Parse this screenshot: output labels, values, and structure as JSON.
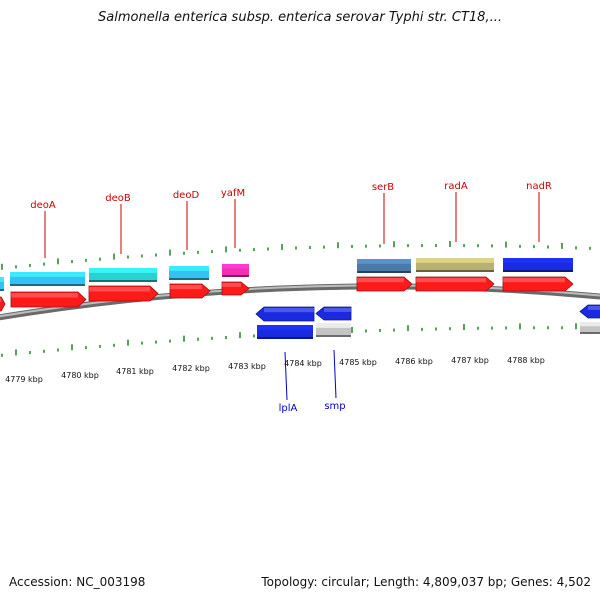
{
  "title": "Salmonella enterica subsp. enterica serovar Typhi str. CT18,...",
  "footer": {
    "accession": "Accession: NC_003198",
    "topology": "Topology: circular; Length: 4,809,037 bp; Genes: 4,502"
  },
  "scale": {
    "unit": "kbp",
    "labels": [
      "4779 kbp",
      "4780 kbp",
      "4781 kbp",
      "4782 kbp",
      "4783 kbp",
      "4784 kbp",
      "4785 kbp",
      "4786 kbp",
      "4787 kbp",
      "4788 kbp"
    ]
  },
  "genes": [
    {
      "name": "deoA",
      "strand": "+"
    },
    {
      "name": "deoB",
      "strand": "+"
    },
    {
      "name": "deoD",
      "strand": "+"
    },
    {
      "name": "yafM",
      "strand": "+"
    },
    {
      "name": "serB",
      "strand": "+"
    },
    {
      "name": "radA",
      "strand": "+"
    },
    {
      "name": "nadR",
      "strand": "+"
    },
    {
      "name": "lplA",
      "strand": "-"
    },
    {
      "name": "smp",
      "strand": "-"
    }
  ],
  "colors": {
    "cds": "#ff1a1a",
    "forward_gene_label": "#cc0000",
    "reverse_gene_label": "#0000cc",
    "backbone": "#8c8c8c",
    "tick": "#2e8b2e",
    "light_blue": "#33c3f2",
    "teal": "#2cd0d0",
    "magenta": "#f030b0",
    "steel_blue": "#4a7aa8",
    "khaki": "#b8b070",
    "blue": "#1a2ae0",
    "gray": "#c4c4c4"
  }
}
